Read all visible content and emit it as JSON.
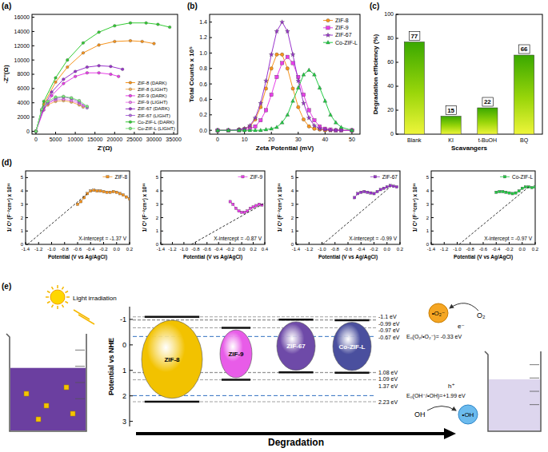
{
  "chart_data": [
    {
      "type": "line",
      "panel_label": "(a)",
      "x_label": "Z'(Ω)",
      "y_label": "-Z''(Ω)",
      "xlim": [
        -1000,
        36000
      ],
      "ylim": [
        -400,
        16400
      ],
      "xticks": [
        0,
        5000,
        10000,
        15000,
        20000,
        25000,
        30000,
        35000
      ],
      "yticks": [
        0,
        2000,
        4000,
        6000,
        8000,
        10000,
        12000,
        14000,
        16000
      ],
      "legend": "lower right",
      "series": [
        {
          "name": "ZIF-8 (DARK)",
          "color": "#f7941d",
          "marker": "circle",
          "x": [
            0,
            2000,
            5000,
            8000,
            12000,
            16000,
            20000,
            24000,
            27000,
            30000
          ],
          "values": [
            0,
            3800,
            6900,
            9000,
            11000,
            12100,
            12600,
            12700,
            12600,
            12300
          ]
        },
        {
          "name": "ZIF-8 (LIGHT)",
          "color": "#f9b25a",
          "marker": "circle",
          "x": [
            0,
            1500,
            3000,
            5000,
            7000,
            9000,
            11000,
            12000
          ],
          "values": [
            0,
            2800,
            3700,
            4200,
            4300,
            4100,
            3700,
            3400
          ]
        },
        {
          "name": "ZIF-9 (DARK)",
          "color": "#e83ee8",
          "marker": "circle",
          "x": [
            0,
            2000,
            4000,
            7000,
            10000,
            13000,
            16000,
            19000,
            21000
          ],
          "values": [
            0,
            3000,
            5000,
            6700,
            7700,
            8200,
            8200,
            8000,
            7700
          ]
        },
        {
          "name": "ZIF-9 (LIGHT)",
          "color": "#f07af0",
          "marker": "circle",
          "x": [
            0,
            1500,
            3000,
            5000,
            7000,
            9000,
            11000,
            12000
          ],
          "values": [
            0,
            2900,
            3900,
            4400,
            4500,
            4300,
            3900,
            3600
          ]
        },
        {
          "name": "ZIF-67 (DARK)",
          "color": "#9933cc",
          "marker": "circle",
          "x": [
            0,
            2000,
            4000,
            7000,
            10000,
            13000,
            16000,
            19000,
            22000
          ],
          "values": [
            0,
            3400,
            5500,
            7300,
            8400,
            9000,
            9200,
            9100,
            8700
          ]
        },
        {
          "name": "ZIF-67 (LIGHT)",
          "color": "#b36be0",
          "marker": "circle",
          "x": [
            0,
            1500,
            3000,
            5000,
            7000,
            9000,
            11000,
            13000
          ],
          "values": [
            0,
            3000,
            4000,
            4600,
            4800,
            4600,
            4100,
            3300
          ]
        },
        {
          "name": "Co-ZIF-L (DARK)",
          "color": "#33cc33",
          "marker": "circle",
          "x": [
            0,
            2000,
            5000,
            8000,
            12000,
            16000,
            20000,
            24000,
            28000,
            31000,
            34000
          ],
          "values": [
            0,
            4200,
            7500,
            10000,
            12400,
            13900,
            14800,
            15200,
            15200,
            15000,
            14600
          ]
        },
        {
          "name": "Co-ZIF-L (LIGHT)",
          "color": "#7aea7a",
          "marker": "circle",
          "x": [
            0,
            1500,
            3000,
            5000,
            7000,
            9000,
            11000,
            13000
          ],
          "values": [
            0,
            3100,
            4200,
            4800,
            4900,
            4700,
            4300,
            3500
          ]
        }
      ]
    },
    {
      "type": "line",
      "panel_label": "(b)",
      "x_label": "Zeta Potential (mV)",
      "y_label": "Total Counts x 10⁵",
      "xlim": [
        -3,
        53
      ],
      "ylim": [
        -0.05,
        1.5
      ],
      "xticks": [
        0,
        10,
        20,
        30,
        40,
        50
      ],
      "yticks": [
        {
          "value": 0,
          "label": "0.0"
        },
        0.2,
        0.4,
        0.6,
        0.8,
        {
          "value": 1,
          "label": "1.0"
        },
        1.2,
        1.4
      ],
      "legend": "upper right",
      "series": [
        {
          "name": "ZIF-8",
          "color": "#f7941d",
          "marker": "circle",
          "x": [
            0,
            4,
            8,
            10,
            12,
            14,
            16,
            18,
            20,
            22,
            24,
            26,
            28,
            30,
            32,
            34,
            36,
            38,
            40,
            42,
            44,
            46,
            50
          ],
          "values": [
            0,
            0,
            0.01,
            0.02,
            0.05,
            0.14,
            0.3,
            0.54,
            0.8,
            0.98,
            0.98,
            0.8,
            0.54,
            0.3,
            0.14,
            0.05,
            0.02,
            0.01,
            0,
            0,
            0,
            0,
            0
          ]
        },
        {
          "name": "ZIF-9",
          "color": "#e83ee8",
          "marker": "square",
          "x": [
            0,
            4,
            8,
            10,
            12,
            14,
            16,
            18,
            20,
            22,
            24,
            26,
            28,
            30,
            32,
            34,
            36,
            38,
            40,
            42,
            44,
            46,
            50
          ],
          "values": [
            0,
            0,
            0,
            0.01,
            0.02,
            0.05,
            0.13,
            0.26,
            0.46,
            0.69,
            0.87,
            0.95,
            0.87,
            0.69,
            0.46,
            0.26,
            0.13,
            0.05,
            0.02,
            0.01,
            0,
            0,
            0
          ]
        },
        {
          "name": "ZIF-67",
          "color": "#9933cc",
          "marker": "star",
          "x": [
            0,
            4,
            8,
            10,
            12,
            14,
            16,
            18,
            20,
            22,
            24,
            26,
            28,
            30,
            32,
            34,
            36,
            38,
            40,
            42,
            44,
            46,
            50
          ],
          "values": [
            0,
            0,
            0.01,
            0.02,
            0.06,
            0.16,
            0.35,
            0.64,
            0.98,
            1.28,
            1.4,
            1.28,
            0.98,
            0.64,
            0.35,
            0.16,
            0.06,
            0.02,
            0.01,
            0,
            0,
            0,
            0
          ]
        },
        {
          "name": "Co-ZIF-L",
          "color": "#22cc44",
          "marker": "triangle",
          "x": [
            0,
            4,
            8,
            10,
            12,
            14,
            16,
            18,
            20,
            22,
            24,
            26,
            28,
            30,
            32,
            34,
            36,
            38,
            40,
            42,
            44,
            46,
            50
          ],
          "values": [
            0,
            0,
            0,
            0,
            0,
            0,
            0,
            0.01,
            0.02,
            0.04,
            0.1,
            0.2,
            0.38,
            0.55,
            0.72,
            0.78,
            0.72,
            0.55,
            0.38,
            0.2,
            0.1,
            0.04,
            0
          ]
        }
      ]
    },
    {
      "type": "bar",
      "panel_label": "(c)",
      "x_label": "Scavangers",
      "y_label": "Degradation efficiency (%)",
      "categories": [
        "Blank",
        "KI",
        "t-BuOH",
        "BQ"
      ],
      "values": [
        77,
        15,
        22,
        66
      ],
      "color": "#9ad60a",
      "ylim": [
        0,
        100
      ],
      "yticks": [
        0,
        20,
        40,
        60,
        80,
        100
      ],
      "data_labels": true
    },
    {
      "type": "line",
      "panel_label": "(d)",
      "x_label": "Potential (V vs Ag/AgCl)",
      "y_label": "1/ C² (F⁻²cm⁴) x 10¹¹",
      "annotation": "X-intercept = -1.37 V",
      "xlim": [
        -1.4,
        0.2
      ],
      "ylim": [
        0,
        5.5
      ],
      "xticks": [
        -1.4,
        -1.2,
        {
          "value": -1,
          "label": "-1.0"
        },
        -0.8,
        -0.6,
        -0.4,
        -0.2,
        {
          "value": 0,
          "label": "0.0"
        },
        0.2
      ],
      "yticks": [
        0,
        1,
        2,
        3,
        4,
        5
      ],
      "legend": "upper right",
      "series": [
        {
          "name": "ZIF-8",
          "color": "#f7941d",
          "marker": "square",
          "x": [
            -0.6,
            -0.55,
            -0.5,
            -0.45,
            -0.4,
            -0.35,
            -0.3,
            -0.25,
            -0.2,
            -0.15,
            -0.1,
            -0.05,
            0,
            0.05,
            0.1,
            0.15,
            0.2
          ],
          "values": [
            3.0,
            3.2,
            3.5,
            3.8,
            4.0,
            4.05,
            4.0,
            4.0,
            3.95,
            3.9,
            3.9,
            3.95,
            3.9,
            3.8,
            3.7,
            3.55,
            3.4
          ]
        },
        {
          "type": "line",
          "line_style": "dashed",
          "color": "#000000",
          "x": [
            -1.37,
            -0.45
          ],
          "values": [
            0,
            3.8
          ]
        }
      ]
    },
    {
      "type": "line",
      "x_label": "Potential (V vs Ag/AgCl)",
      "y_label": "1/ C² (F⁻²cm⁴) x 10¹¹",
      "annotation": "X-intercept = -0.87 V",
      "xlim": [
        -1.4,
        0.4
      ],
      "ylim": [
        0,
        5.5
      ],
      "xticks": [
        -1.4,
        -1.2,
        {
          "value": -1,
          "label": "-1.0"
        },
        -0.8,
        -0.6,
        -0.4,
        -0.2,
        {
          "value": 0,
          "label": "0.0"
        },
        0.2,
        0.4
      ],
      "yticks": [
        0,
        1,
        2,
        3,
        4,
        5
      ],
      "legend": "upper right",
      "series": [
        {
          "name": "ZIF-9",
          "color": "#e83ee8",
          "marker": "square",
          "x": [
            -0.2,
            -0.15,
            -0.1,
            -0.05,
            0,
            0.05,
            0.1,
            0.15,
            0.2,
            0.25,
            0.3,
            0.35
          ],
          "values": [
            3.2,
            3.0,
            2.7,
            2.5,
            2.4,
            2.4,
            2.5,
            2.7,
            2.8,
            2.9,
            3.0,
            2.95
          ]
        },
        {
          "type": "line",
          "line_style": "dashed",
          "color": "#000000",
          "x": [
            -0.87,
            0.4
          ],
          "values": [
            0,
            3.1
          ]
        }
      ]
    },
    {
      "type": "line",
      "x_label": "Potential (V vs Ag/AgCl)",
      "y_label": "1/ C² (F⁻²cm⁴) x 10¹¹",
      "annotation": "X-intercept = -0.99 V",
      "xlim": [
        -1.4,
        0.2
      ],
      "ylim": [
        0,
        5.5
      ],
      "xticks": [
        -1.4,
        -1.2,
        {
          "value": -1,
          "label": "-1.0"
        },
        -0.8,
        -0.6,
        -0.4,
        -0.2,
        {
          "value": 0,
          "label": "0.0"
        },
        0.2
      ],
      "yticks": [
        0,
        1,
        2,
        3,
        4,
        5
      ],
      "legend": "upper right",
      "series": [
        {
          "name": "ZIF-67",
          "color": "#9933cc",
          "marker": "square",
          "x": [
            -0.5,
            -0.45,
            -0.4,
            -0.35,
            -0.3,
            -0.25,
            -0.2,
            -0.15,
            -0.1,
            -0.05,
            0,
            0.05,
            0.1,
            0.15
          ],
          "values": [
            3.5,
            3.8,
            3.9,
            3.95,
            3.9,
            3.85,
            3.8,
            3.95,
            4.1,
            4.2,
            4.3,
            4.4,
            4.35,
            4.3
          ]
        },
        {
          "type": "line",
          "line_style": "dashed",
          "color": "#000000",
          "x": [
            -0.99,
            0.05
          ],
          "values": [
            0,
            4.3
          ]
        }
      ]
    },
    {
      "type": "line",
      "x_label": "Potential (V vs Ag/AgCl)",
      "y_label": "1/ C² (F⁻²cm⁴) x 10¹¹",
      "annotation": "X-intercept = -0.97 V",
      "xlim": [
        -1.4,
        0.2
      ],
      "ylim": [
        0,
        5.5
      ],
      "xticks": [
        -1.4,
        -1.2,
        {
          "value": -1,
          "label": "-1.0"
        },
        -0.8,
        -0.6,
        -0.4,
        -0.2,
        {
          "value": 0,
          "label": "0.0"
        },
        0.2
      ],
      "yticks": [
        0,
        1,
        2,
        3,
        4,
        5
      ],
      "legend": "upper right",
      "series": [
        {
          "name": "Co-ZIF-L",
          "color": "#22cc44",
          "marker": "square",
          "x": [
            -0.4,
            -0.35,
            -0.3,
            -0.25,
            -0.2,
            -0.15,
            -0.1,
            -0.05,
            0,
            0.05,
            0.1,
            0.15,
            0.2
          ],
          "values": [
            3.9,
            3.95,
            3.95,
            3.9,
            3.85,
            3.8,
            3.85,
            4.0,
            4.2,
            4.3,
            4.3,
            4.25,
            4.3
          ]
        },
        {
          "type": "line",
          "line_style": "dashed",
          "color": "#000000",
          "x": [
            -0.97,
            0.1
          ],
          "values": [
            0,
            4.3
          ]
        }
      ]
    }
  ],
  "diagram": {
    "panel_label": "(e)",
    "light_label": "Light irradiation",
    "axis": {
      "label": "Potential vs NHE",
      "lim": [
        -1.5,
        3.2
      ],
      "ticks": [
        -1,
        0,
        1,
        2,
        3
      ]
    },
    "materials": [
      {
        "name": "ZIF-8",
        "color": "#f2c200",
        "cb": {
          "value": -1.1,
          "label": "-1.1 eV"
        },
        "vb": {
          "value": 2.23,
          "label": "2.23 eV"
        }
      },
      {
        "name": "ZIF-9",
        "color": "#e85ce8",
        "cb": {
          "value": -0.67,
          "label": "-0.67 eV"
        },
        "vb": {
          "value": 1.37,
          "label": "1.37 eV"
        }
      },
      {
        "name": "ZIF-67",
        "color": "#6e4aa8",
        "cb": {
          "value": -0.99,
          "label": "-0.99 eV"
        },
        "vb": {
          "value": 1.08,
          "label": "1.08 eV"
        }
      },
      {
        "name": "Co-ZIF-L",
        "color": "#4a4f9e",
        "cb": {
          "value": -0.97,
          "label": "-0.97 eV"
        },
        "vb": {
          "value": 1.09,
          "label": "1.09 eV"
        }
      }
    ],
    "redox": [
      {
        "label": "E₀(O₂/•O₂⁻)= -0.33 eV",
        "value": -0.33
      },
      {
        "label": "E₀(OH⁻/•OH)=+1.99 eV",
        "value": 1.99
      }
    ],
    "species": {
      "o2": "O₂",
      "superoxide": "•O₂⁻",
      "electron": "e⁻",
      "hole": "h⁺",
      "hydroxide": "OH",
      "hydroxyl": "•OH"
    },
    "arrow_label": "Degradation"
  }
}
